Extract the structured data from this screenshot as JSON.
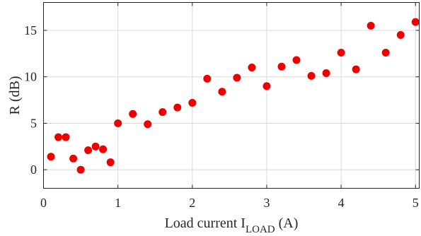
{
  "chart_data": {
    "type": "scatter",
    "title": "",
    "xlabel": {
      "main": "Load current I",
      "subscript": "LOAD",
      "unit": " (A)"
    },
    "ylabel": "R (dB)",
    "xlim": [
      0,
      5.05
    ],
    "ylim": [
      -2,
      18
    ],
    "xticks": [
      0,
      1,
      2,
      3,
      4,
      5
    ],
    "yticks": [
      0,
      5,
      10,
      15
    ],
    "grid": true,
    "legend": "none",
    "marker_color": "#ee0000",
    "series": [
      {
        "x": [
          0.1,
          0.2,
          0.3,
          0.4,
          0.5,
          0.6,
          0.7,
          0.8,
          0.9,
          1.0,
          1.2,
          1.4,
          1.6,
          1.8,
          2.0,
          2.2,
          2.4,
          2.6,
          2.8,
          3.0,
          3.2,
          3.4,
          3.6,
          3.8,
          4.0,
          4.2,
          4.4,
          4.6,
          4.8,
          5.0
        ],
        "y": [
          1.4,
          3.5,
          3.5,
          1.2,
          0.0,
          2.1,
          2.5,
          2.2,
          0.8,
          5.0,
          6.0,
          4.9,
          6.2,
          6.7,
          7.2,
          9.8,
          8.4,
          9.9,
          11.0,
          9.0,
          11.1,
          11.8,
          10.1,
          10.4,
          12.6,
          10.8,
          15.5,
          12.6,
          14.5,
          15.9
        ]
      }
    ]
  }
}
